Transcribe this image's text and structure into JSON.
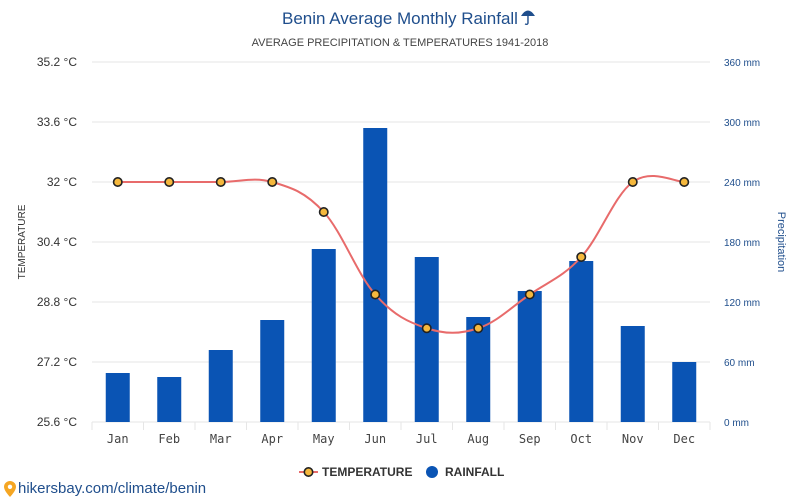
{
  "chart_data": {
    "type": "bar+line",
    "title": "Benin Average Monthly Rainfall",
    "title_icon": "umbrella-icon",
    "subtitle": "AVERAGE PRECIPITATION & TEMPERATURES 1941-2018",
    "categories": [
      "Jan",
      "Feb",
      "Mar",
      "Apr",
      "May",
      "Jun",
      "Jul",
      "Aug",
      "Sep",
      "Oct",
      "Nov",
      "Dec"
    ],
    "series": [
      {
        "name": "TEMPERATURE",
        "type": "line",
        "axis": "left",
        "color": "#e86b6b",
        "marker_fill": "#f5b83d",
        "values": [
          32,
          32,
          32,
          32,
          31.2,
          29.0,
          28.1,
          28.1,
          29.0,
          30.0,
          32,
          32
        ]
      },
      {
        "name": "RAINFALL",
        "type": "bar",
        "axis": "right",
        "color": "#0a54b4",
        "values": [
          49,
          45,
          72,
          102,
          173,
          294,
          165,
          105,
          131,
          161,
          96,
          60
        ]
      }
    ],
    "y_left": {
      "label": "TEMPERATURE",
      "min": 25.6,
      "max": 35.2,
      "ticks": [
        "25.6 °C",
        "27.2 °C",
        "28.8 °C",
        "30.4 °C",
        "32 °C",
        "33.6 °C",
        "35.2 °C"
      ]
    },
    "y_right": {
      "label": "Precipitation",
      "min": 0,
      "max": 360,
      "ticks": [
        "0 mm",
        "60 mm",
        "120 mm",
        "180 mm",
        "240 mm",
        "300 mm",
        "360 mm"
      ]
    },
    "grid": true,
    "legend_position": "bottom-center"
  },
  "source": {
    "text": "hikersbay.com/climate/benin",
    "icon": "location-pin-icon"
  }
}
